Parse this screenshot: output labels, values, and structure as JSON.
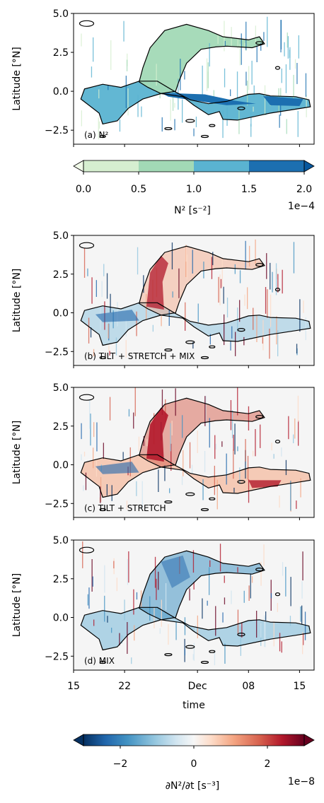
{
  "chart_data": [
    {
      "type": "heatmap",
      "panel": "a",
      "annotation": "(a) N²",
      "ylabel": "Latitude [°N]",
      "ylim": [
        -3.4,
        5.0
      ],
      "yticks": [
        "5.0",
        "2.5",
        "0.0",
        "−2.5"
      ],
      "ytick_values": [
        5.0,
        2.5,
        0.0,
        -2.5
      ],
      "background": "#ffffff",
      "colorbar": {
        "label": "N² [s⁻²]",
        "ticks": [
          "0.0",
          "0.5",
          "1.0",
          "1.5",
          "2.0"
        ],
        "tick_values": [
          0.0,
          0.5,
          1.0,
          1.5,
          2.0
        ],
        "scale": "1e−4",
        "range": [
          0.0,
          2.0
        ],
        "colors": [
          "#d6efd0",
          "#a2d9b6",
          "#5ab3d1",
          "#1c6fb0"
        ],
        "extend": "both",
        "under_color": "#f0f9e8",
        "over_color": "#08589e"
      }
    },
    {
      "type": "heatmap",
      "panel": "b",
      "annotation": "(b) TILT + STRETCH + MIX",
      "ylabel": "Latitude [°N]",
      "ylim": [
        -3.4,
        5.0
      ],
      "yticks": [
        "5.0",
        "2.5",
        "0.0",
        "−2.5"
      ],
      "ytick_values": [
        5.0,
        2.5,
        0.0,
        -2.5
      ],
      "background": "#f5f5f5"
    },
    {
      "type": "heatmap",
      "panel": "c",
      "annotation": "(c) TILT + STRETCH",
      "ylabel": "Latitude [°N]",
      "ylim": [
        -3.4,
        5.0
      ],
      "yticks": [
        "5.0",
        "2.5",
        "0.0",
        "−2.5"
      ],
      "ytick_values": [
        5.0,
        2.5,
        0.0,
        -2.5
      ],
      "background": "#f5f5f5"
    },
    {
      "type": "heatmap",
      "panel": "d",
      "annotation": "(d) MIX",
      "ylabel": "Latitude [°N]",
      "ylim": [
        -3.4,
        5.0
      ],
      "yticks": [
        "5.0",
        "2.5",
        "0.0",
        "−2.5"
      ],
      "ytick_values": [
        5.0,
        2.5,
        0.0,
        -2.5
      ],
      "background": "#f5f5f5",
      "xlabel": "time",
      "xticks": [
        "15",
        "22",
        "Dec",
        "08",
        "15"
      ],
      "xtick_values": [
        15,
        22,
        32,
        39,
        46
      ],
      "xlim": [
        15,
        48
      ],
      "colorbar": {
        "label": "∂N²/∂t [s⁻³]",
        "ticks": [
          "−2",
          "0",
          "2"
        ],
        "tick_values": [
          -2,
          0,
          2
        ],
        "scale": "1e−8",
        "range": [
          -3,
          3
        ],
        "colors": [
          "#053061",
          "#2166ac",
          "#4393c3",
          "#92c5de",
          "#d1e5f0",
          "#f7f7f7",
          "#fddbc7",
          "#f4a582",
          "#d6604d",
          "#b2182b",
          "#67001f"
        ],
        "extend": "both"
      }
    }
  ]
}
